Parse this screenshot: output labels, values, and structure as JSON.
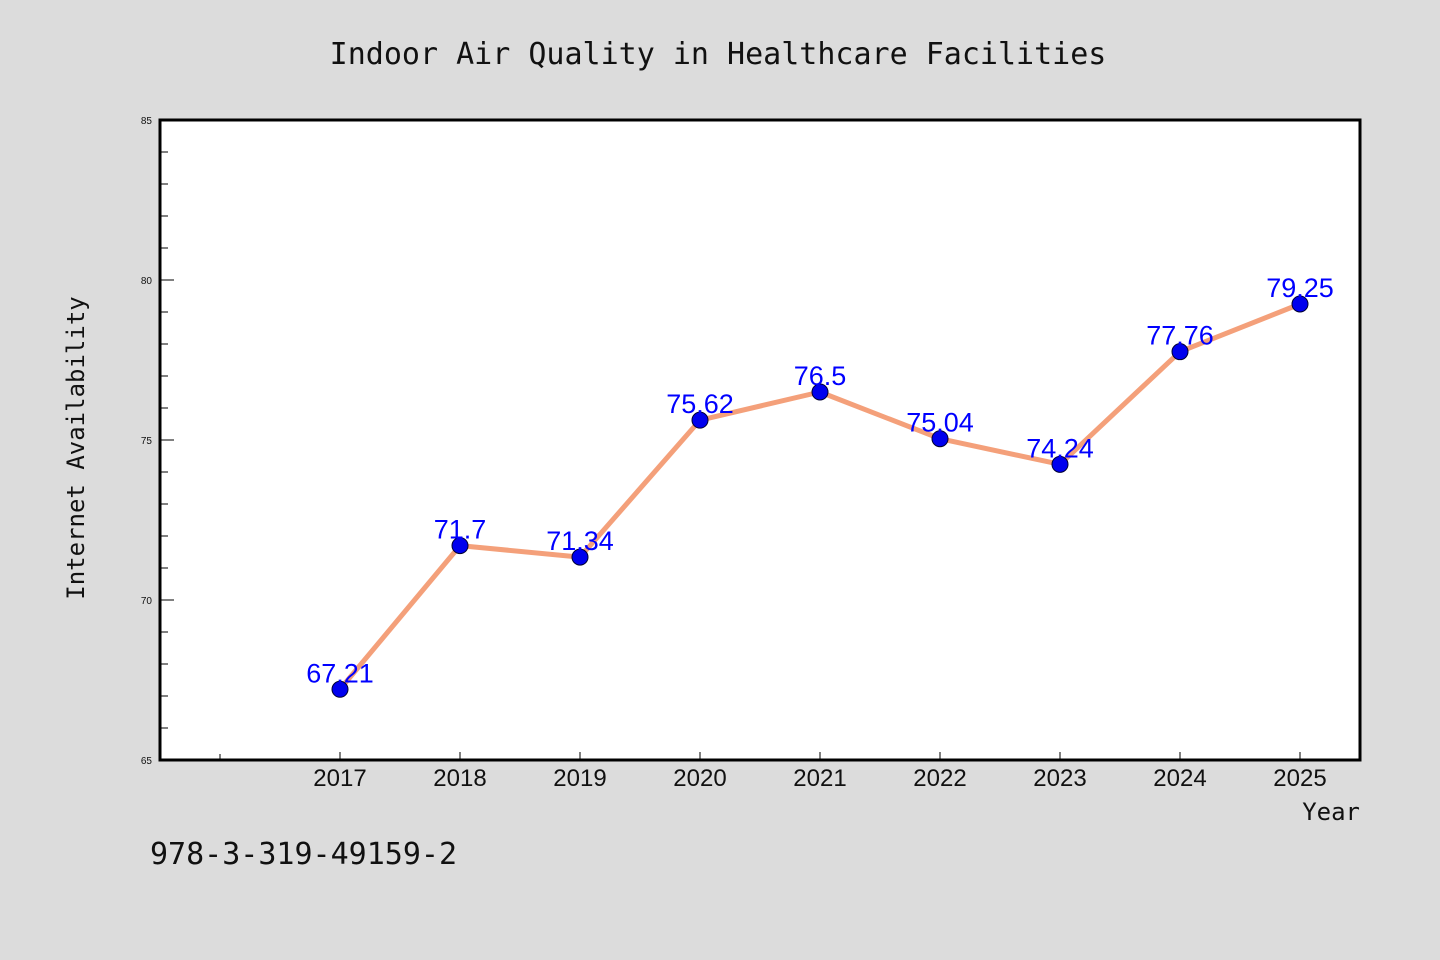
{
  "chart_data": {
    "type": "line",
    "title": "Indoor Air Quality in Healthcare Facilities",
    "xlabel": "Year",
    "ylabel": "Internet Availability",
    "categories": [
      "2017",
      "2018",
      "2019",
      "2020",
      "2021",
      "2022",
      "2023",
      "2024",
      "2025"
    ],
    "values": [
      67.21,
      71.7,
      71.34,
      75.62,
      76.5,
      75.04,
      74.24,
      77.76,
      79.25
    ],
    "data_labels": [
      "67.21",
      "71.7",
      "71.34",
      "75.62",
      "76.5",
      "75.04",
      "74.24",
      "77.76",
      "79.25"
    ],
    "ylim": [
      65,
      85
    ],
    "yticks": [
      65,
      70,
      75,
      80,
      85
    ],
    "ytick_labels": [
      "65",
      "70",
      "75",
      "80",
      "85"
    ],
    "grid": false,
    "colors": {
      "line": "#f4a07a",
      "marker": "#0000ee",
      "data_label": "#0000ff",
      "background": "#dcdcdc",
      "plot_background": "#ffffff"
    }
  },
  "annotation": "978-3-319-49159-2"
}
